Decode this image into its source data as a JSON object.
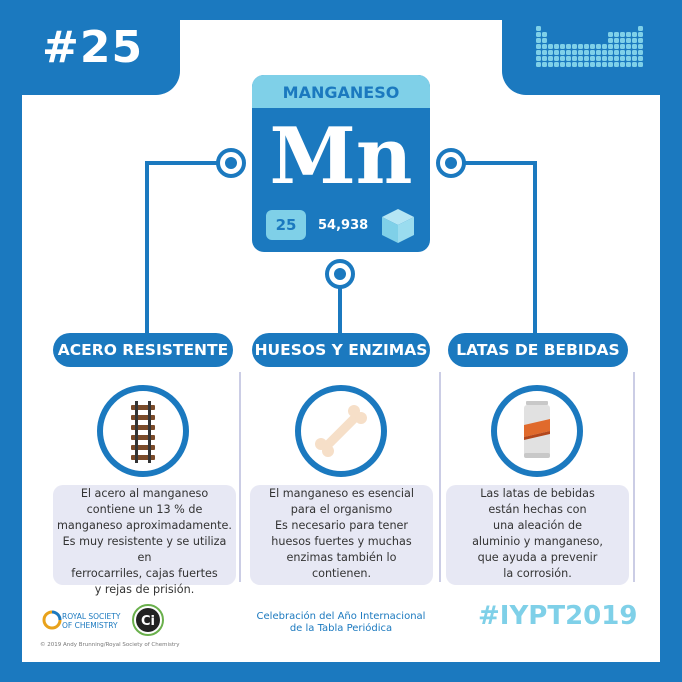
{
  "header": {
    "issue_number": "#25"
  },
  "element": {
    "name": "MANGANESO",
    "symbol": "Mn",
    "atomic_number": "25",
    "atomic_mass": "54,938"
  },
  "sections": [
    {
      "title": "ACERO RESISTENTE",
      "icon": "rail-track-icon",
      "caption": "El acero al manganeso\ncontiene un 13 % de\nmanganeso aproximadamente.\nEs muy resistente y se utiliza en\nferrocarriles, cajas fuertes\ny rejas de prisión."
    },
    {
      "title": "HUESOS Y ENZIMAS",
      "icon": "bone-icon",
      "caption": "El manganeso es esencial\npara el organismo\nEs necesario para tener\nhuesos fuertes y muchas\nenzimas también lo\ncontienen."
    },
    {
      "title": "LATAS DE BEBIDAS",
      "icon": "drink-can-icon",
      "caption": "Las latas de bebidas\nestán hechas con\nuna aleación de\naluminio y manganeso,\nque ayuda a prevenir\nla corrosión."
    }
  ],
  "footer": {
    "rsc_text": "ROYAL SOCIETY\nOF CHEMISTRY",
    "ci_logo_text": "Ci",
    "copyright": "© 2019 Andy Brunning/Royal Society of Chemistry",
    "celebration": "Celebración del Año Internacional\nde la Tabla Periódica",
    "hashtag": "#IYPT2019"
  },
  "colors": {
    "blue": "#1b79bf",
    "light_blue": "#7fd0e8",
    "caption_bg": "#e7e8f4"
  }
}
